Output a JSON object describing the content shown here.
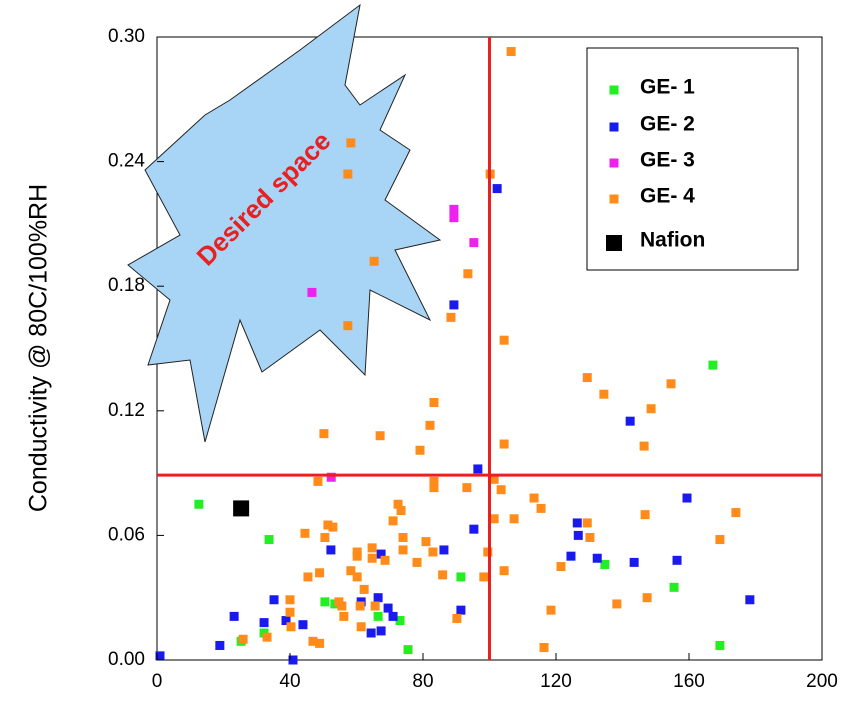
{
  "chart_data": {
    "type": "scatter",
    "y_label": "Conductivity @ 80C/100%RH",
    "annotation": "Desired space",
    "xlim": [
      0,
      200
    ],
    "xticks": [
      0,
      40,
      80,
      120,
      160,
      200
    ],
    "ylim": [
      0,
      0.3
    ],
    "yticks": [
      {
        "value": 0,
        "label": "0.00"
      },
      0.06,
      0.12,
      0.18,
      0.24,
      {
        "value": 0.3,
        "label": "0.30"
      }
    ],
    "reference_lines": {
      "x": 100,
      "y": 0.089,
      "color": "#e82020"
    },
    "series": [
      {
        "name": "GE- 1",
        "color": "#22ee22",
        "marker_size": 9,
        "x": [
          12.6,
          33.7,
          25.3,
          32.2,
          50.5,
          53.5,
          66.5,
          73.1,
          75.5,
          91.4,
          134.7,
          155.5,
          167.2,
          169.3
        ],
        "values": [
          0.075,
          0.058,
          0.009,
          0.013,
          0.028,
          0.027,
          0.021,
          0.019,
          0.005,
          0.04,
          0.046,
          0.035,
          0.142,
          0.007
        ]
      },
      {
        "name": "GE- 2",
        "color": "#1a1aee",
        "marker_size": 9,
        "x": [
          0.9,
          18.9,
          23.2,
          32.2,
          35.2,
          38.8,
          40.9,
          43.9,
          52.3,
          61.4,
          64.4,
          66.5,
          67.4,
          67.4,
          69.5,
          71.0,
          86.3,
          89.3,
          91.4,
          95.3,
          96.5,
          102.3,
          124.5,
          126.4,
          126.7,
          132.4,
          143.5,
          142.3,
          156.4,
          159.4,
          178.3
        ],
        "values": [
          0.002,
          0.007,
          0.021,
          0.018,
          0.029,
          0.019,
          0.0,
          0.017,
          0.053,
          0.028,
          0.013,
          0.03,
          0.014,
          0.051,
          0.025,
          0.021,
          0.053,
          0.171,
          0.024,
          0.063,
          0.092,
          0.227,
          0.05,
          0.066,
          0.06,
          0.049,
          0.047,
          0.115,
          0.048,
          0.078,
          0.029
        ]
      },
      {
        "name": "GE- 3",
        "color": "#ee22ee",
        "marker_size": 9,
        "x": [
          46.6,
          52.4,
          89.3,
          89.3,
          95.3
        ],
        "values": [
          0.177,
          0.088,
          0.217,
          0.213,
          0.201
        ]
      },
      {
        "name": "GE- 4",
        "color": "#ff8c1a",
        "marker_size": 9,
        "x": [
          25.9,
          33.1,
          40.0,
          40.0,
          40.3,
          44.5,
          45.4,
          46.9,
          48.9,
          48.4,
          48.9,
          50.2,
          50.5,
          51.4,
          52.9,
          54.7,
          55.6,
          56.2,
          57.4,
          57.4,
          58.3,
          58.3,
          60.2,
          60.2,
          60.2,
          61.1,
          61.4,
          62.3,
          64.7,
          64.7,
          65.3,
          65.6,
          67.1,
          68.6,
          71.0,
          72.5,
          73.4,
          74.0,
          74.0,
          78.2,
          79.1,
          80.9,
          82.1,
          83.3,
          83.3,
          83.3,
          83.0,
          85.9,
          88.4,
          90.2,
          93.2,
          93.5,
          98.3,
          99.5,
          100.2,
          101.4,
          101.4,
          103.5,
          104.4,
          104.4,
          104.4,
          106.5,
          107.4,
          113.4,
          115.5,
          116.4,
          118.5,
          121.5,
          129.4,
          129.4,
          130.2,
          134.4,
          138.3,
          146.5,
          146.8,
          147.4,
          148.6,
          154.6,
          169.3,
          174.1
        ],
        "values": [
          0.01,
          0.011,
          0.029,
          0.023,
          0.016,
          0.061,
          0.04,
          0.009,
          0.008,
          0.086,
          0.042,
          0.109,
          0.059,
          0.065,
          0.064,
          0.028,
          0.026,
          0.021,
          0.161,
          0.234,
          0.249,
          0.043,
          0.052,
          0.05,
          0.04,
          0.026,
          0.016,
          0.034,
          0.054,
          0.049,
          0.192,
          0.026,
          0.108,
          0.048,
          0.067,
          0.075,
          0.072,
          0.059,
          0.053,
          0.047,
          0.101,
          0.057,
          0.113,
          0.124,
          0.086,
          0.083,
          0.052,
          0.041,
          0.165,
          0.02,
          0.083,
          0.186,
          0.04,
          0.052,
          0.234,
          0.087,
          0.068,
          0.082,
          0.154,
          0.104,
          0.043,
          0.293,
          0.068,
          0.078,
          0.073,
          0.006,
          0.024,
          0.045,
          0.136,
          0.066,
          0.059,
          0.128,
          0.027,
          0.103,
          0.07,
          0.03,
          0.121,
          0.133,
          0.058,
          0.071
        ]
      },
      {
        "name": "Nafion",
        "color": "#000000",
        "marker_size": 16,
        "x": [
          25.3
        ],
        "values": [
          0.073
        ]
      }
    ]
  }
}
